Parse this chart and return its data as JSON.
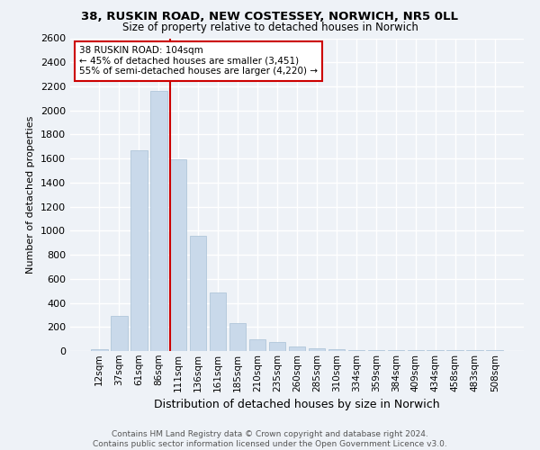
{
  "title_line1": "38, RUSKIN ROAD, NEW COSTESSEY, NORWICH, NR5 0LL",
  "title_line2": "Size of property relative to detached houses in Norwich",
  "xlabel": "Distribution of detached houses by size in Norwich",
  "ylabel": "Number of detached properties",
  "bar_color": "#c9d9ea",
  "bar_edgecolor": "#a8c0d6",
  "categories": [
    "12sqm",
    "37sqm",
    "61sqm",
    "86sqm",
    "111sqm",
    "136sqm",
    "161sqm",
    "185sqm",
    "210sqm",
    "235sqm",
    "260sqm",
    "285sqm",
    "310sqm",
    "334sqm",
    "359sqm",
    "384sqm",
    "409sqm",
    "434sqm",
    "458sqm",
    "483sqm",
    "508sqm"
  ],
  "values": [
    18,
    290,
    1670,
    2160,
    1590,
    960,
    490,
    235,
    100,
    75,
    40,
    20,
    15,
    10,
    8,
    5,
    5,
    5,
    5,
    5,
    5
  ],
  "ylim": [
    0,
    2600
  ],
  "yticks": [
    0,
    200,
    400,
    600,
    800,
    1000,
    1200,
    1400,
    1600,
    1800,
    2000,
    2200,
    2400,
    2600
  ],
  "vline_index": 3.6,
  "annotation_title": "38 RUSKIN ROAD: 104sqm",
  "annotation_line1": "← 45% of detached houses are smaller (3,451)",
  "annotation_line2": "55% of semi-detached houses are larger (4,220) →",
  "annotation_box_facecolor": "#ffffff",
  "annotation_box_edgecolor": "#cc0000",
  "vline_color": "#cc0000",
  "footer_line1": "Contains HM Land Registry data © Crown copyright and database right 2024.",
  "footer_line2": "Contains public sector information licensed under the Open Government Licence v3.0.",
  "background_color": "#eef2f7",
  "grid_color": "#ffffff",
  "title1_fontsize": 9.5,
  "title2_fontsize": 8.5,
  "ylabel_fontsize": 8,
  "xlabel_fontsize": 9,
  "tick_fontsize": 7.5,
  "footer_fontsize": 6.5
}
